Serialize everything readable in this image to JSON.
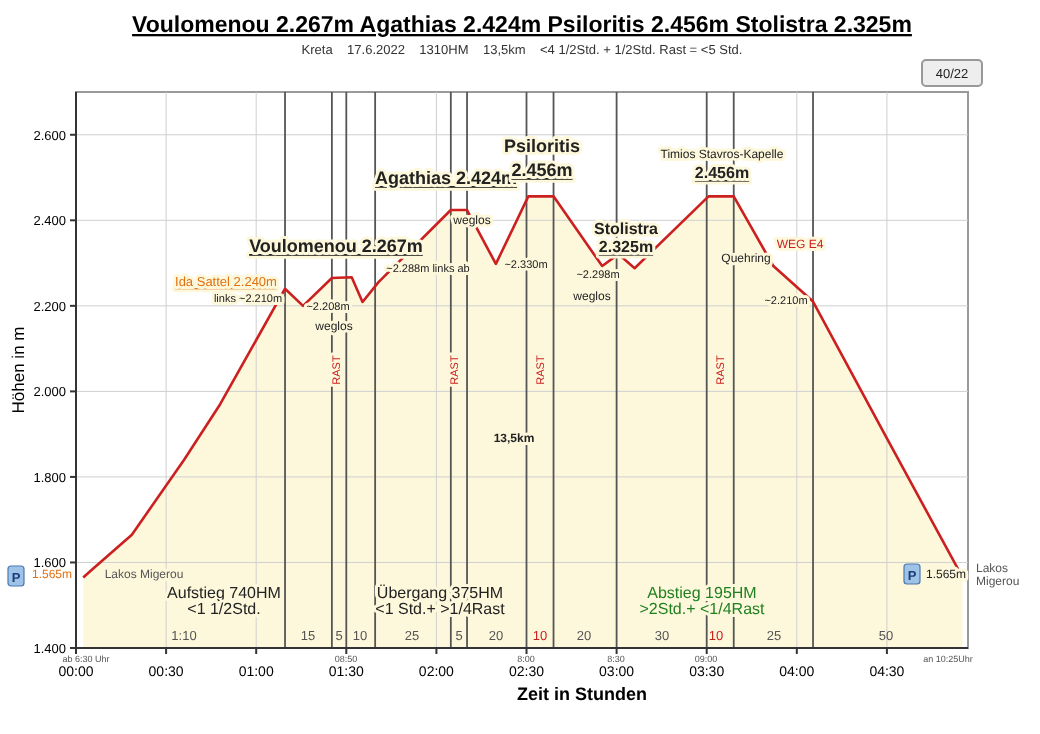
{
  "chart_data": {
    "type": "area",
    "title": "Voulomenou 2.267m Agathias 2.424m Psiloritis 2.456m  Stolistra 2.325m",
    "subtitle": "Kreta    17.6.2022    1310HM    13,5km    <4 1/2Std. + 1/2Std. Rast = <5 Std.",
    "xlabel": "Zeit in Stunden",
    "ylabel": "Höhen in m",
    "series": [
      {
        "color": "#cc2020",
        "x": [
          0.04,
          0.08,
          0.31,
          0.6,
          0.8,
          1.16,
          1.26,
          1.42,
          1.53,
          1.59,
          1.68,
          2.08,
          2.17,
          2.33,
          2.51,
          2.65,
          2.92,
          3.01,
          3.1,
          3.51,
          3.65,
          3.87,
          4.09,
          4.5,
          4.92
        ],
        "values": [
          1565,
          1580,
          1665,
          1840,
          1970,
          2240,
          2200,
          2265,
          2267,
          2209,
          2256,
          2424,
          2424,
          2298,
          2456,
          2456,
          2293,
          2321,
          2288,
          2456,
          2456,
          2293,
          2210,
          1890,
          1565
        ]
      }
    ],
    "xlim": [
      0,
      4.95
    ],
    "ylim": [
      1400,
      2700
    ],
    "xticks": [
      {
        "value": 0,
        "label": "00:00"
      },
      {
        "value": 0.5,
        "label": "00:30"
      },
      {
        "value": 1,
        "label": "01:00"
      },
      {
        "value": 1.5,
        "label": "01:30"
      },
      {
        "value": 2,
        "label": "02:00"
      },
      {
        "value": 2.5,
        "label": "02:30"
      },
      {
        "value": 3,
        "label": "03:00"
      },
      {
        "value": 3.5,
        "label": "03:30"
      },
      {
        "value": 4,
        "label": "04:00"
      },
      {
        "value": 4.5,
        "label": "04:30"
      }
    ],
    "yticks": [
      {
        "value": 1400,
        "label": "1.400"
      },
      {
        "value": 1600,
        "label": "1.600"
      },
      {
        "value": 1800,
        "label": "1.800"
      },
      {
        "value": 2000,
        "label": "2.000"
      },
      {
        "value": 2200,
        "label": "2.200"
      },
      {
        "value": 2400,
        "label": "2.400"
      },
      {
        "value": 2600,
        "label": "2.600"
      }
    ],
    "grid": true,
    "ref_lines": [
      {
        "axis": "x",
        "value": 1.16,
        "color": "#555555"
      },
      {
        "axis": "x",
        "value": 1.42,
        "color": "#555555"
      },
      {
        "axis": "x",
        "value": 1.5,
        "color": "#555555"
      },
      {
        "axis": "x",
        "value": 1.66,
        "color": "#555555"
      },
      {
        "axis": "x",
        "value": 2.08,
        "color": "#555555"
      },
      {
        "axis": "x",
        "value": 2.17,
        "color": "#555555"
      },
      {
        "axis": "x",
        "value": 2.5,
        "color": "#555555"
      },
      {
        "axis": "x",
        "value": 2.65,
        "color": "#555555"
      },
      {
        "axis": "x",
        "value": 3,
        "color": "#555555"
      },
      {
        "axis": "x",
        "value": 3.5,
        "color": "#555555"
      },
      {
        "axis": "x",
        "value": 3.65,
        "color": "#555555"
      },
      {
        "axis": "x",
        "value": 4.09,
        "color": "#555555"
      }
    ],
    "annotations": [
      "Voulomenou 2.267m",
      "Agathias 2.424m",
      "Psiloritis",
      "2.456m",
      "Stolistra",
      "2.325m",
      "Timios Stavros-Kapelle",
      "2.456m",
      "Ida Sattel 2.240m",
      "links ~2.210m",
      "~2.208m",
      "weglos",
      "weglos",
      "~2.288m links ab",
      "~2.330m",
      "~2.298m",
      "weglos",
      "WEG E4",
      "Quehring",
      "~2.210m",
      "13,5km",
      "RAST",
      "RAST",
      "RAST",
      "RAST",
      "Lakos Migerou",
      "Lakos Migerou",
      "1.565m",
      "1.565m",
      "Aufstieg 740HM",
      "<1 1/2Std.",
      "Übergang 375HM",
      "<1 Std.+ >1/4Rast",
      "Abstieg 195HM",
      ">2Std.+ <1/4Rast",
      "1:10",
      "15",
      "5",
      "10",
      "25",
      "5",
      "20",
      "10",
      "20",
      "30",
      "10",
      "25",
      "50",
      "ab 6:30 Uhr",
      "08:50",
      "8:00",
      "8:30",
      "09:00",
      "an 10:25Uhr",
      "40/22",
      "P",
      "P"
    ]
  }
}
